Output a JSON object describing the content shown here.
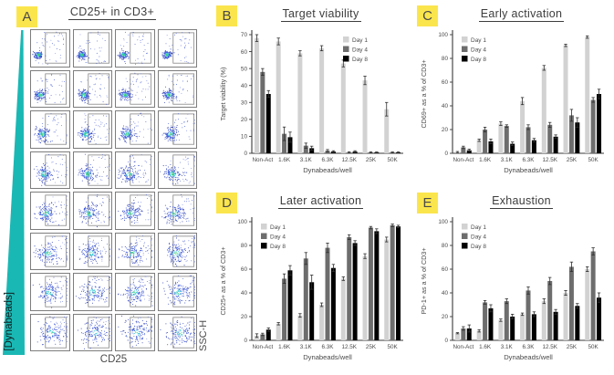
{
  "figure": {
    "panel_label_bg": "#fbe54d",
    "panel_label_color": "#4a4a4a",
    "title_color": "#3d3d3d",
    "axis_color": "#4a4a4a",
    "series_colors": [
      "#d2d2d2",
      "#6d6d6d",
      "#000000"
    ],
    "legend_labels": [
      "Day 1",
      "Day 4",
      "Day 8"
    ],
    "panel_a": {
      "label": "A",
      "title": "CD25+ in CD3+",
      "x_axis_label": "CD25",
      "y_axis_label": "SSC-H",
      "gradient_label": "[Dynabeads]",
      "gradient_color": "#1ab8b4",
      "plot_type": "flow-cytometry-pseudocolor-grid",
      "grid_rows": 8,
      "grid_cols": 4
    }
  },
  "chart_data": [
    {
      "panel": "B",
      "type": "bar",
      "title": "Target viability",
      "xlabel": "Dynabeads/well",
      "ylabel": "Target viability (%)",
      "ylim": [
        0,
        70
      ],
      "ytick_step": 10,
      "grid": false,
      "legend_position": "top-right",
      "categories": [
        "Non-Act",
        "1.6K",
        "3.1K",
        "6.3K",
        "12.5K",
        "25K",
        "50K"
      ],
      "series": [
        {
          "name": "Day 1",
          "values": [
            68,
            66,
            59,
            62,
            53,
            43,
            26
          ],
          "errors": [
            2,
            2,
            1.5,
            1.5,
            2,
            2.5,
            4
          ]
        },
        {
          "name": "Day 4",
          "values": [
            48,
            11.5,
            4.5,
            1.5,
            0.5,
            0.5,
            0.5
          ],
          "errors": [
            2,
            4,
            1.5,
            0.7,
            0.4,
            0.3,
            0.3
          ]
        },
        {
          "name": "Day 8",
          "values": [
            35,
            9.5,
            3,
            1,
            1,
            0.5,
            0.5
          ],
          "errors": [
            2,
            3,
            1.2,
            0.5,
            0.5,
            0.3,
            0.3
          ]
        }
      ]
    },
    {
      "panel": "C",
      "type": "bar",
      "title": "Early activation",
      "xlabel": "Dynabeads/well",
      "ylabel": "CD69+ as a % of CD3+",
      "ylim": [
        0,
        100
      ],
      "ytick_step": 20,
      "grid": false,
      "legend_position": "top-left",
      "categories": [
        "Non-Act",
        "1.6K",
        "3.1K",
        "6.3K",
        "12.5K",
        "25K",
        "50K"
      ],
      "series": [
        {
          "name": "Day 1",
          "values": [
            1,
            11,
            25,
            44,
            72,
            91,
            98
          ],
          "errors": [
            0.5,
            1,
            1.5,
            3,
            2,
            1,
            1
          ]
        },
        {
          "name": "Day 4",
          "values": [
            5,
            20,
            23,
            22,
            24,
            32,
            45
          ],
          "errors": [
            1,
            2,
            1,
            2,
            2,
            5,
            2
          ]
        },
        {
          "name": "Day 8",
          "values": [
            2.5,
            10,
            8,
            11,
            14,
            26,
            50
          ],
          "errors": [
            1,
            2,
            1.5,
            1.5,
            1.5,
            4,
            4
          ]
        }
      ]
    },
    {
      "panel": "D",
      "type": "bar",
      "title": "Later activation",
      "xlabel": "Dynabeads/well",
      "ylabel": "CD25+ as a % of CD3+",
      "ylim": [
        0,
        100
      ],
      "ytick_step": 20,
      "grid": false,
      "legend_position": "top-left",
      "categories": [
        "Non-Act",
        "1.6K",
        "3.1K",
        "6.3K",
        "12.5K",
        "25K",
        "50K"
      ],
      "series": [
        {
          "name": "Day 1",
          "values": [
            4,
            14,
            21,
            30,
            52,
            71,
            85
          ],
          "errors": [
            1.5,
            1,
            1.5,
            1.5,
            1.5,
            2,
            2
          ]
        },
        {
          "name": "Day 4",
          "values": [
            5,
            52,
            69,
            78,
            87,
            95,
            97
          ],
          "errors": [
            1,
            4,
            5,
            4,
            2,
            1,
            1
          ]
        },
        {
          "name": "Day 8",
          "values": [
            9,
            59,
            49,
            61,
            82,
            92,
            96
          ],
          "errors": [
            1.5,
            4,
            6,
            3,
            2,
            2,
            1
          ]
        }
      ]
    },
    {
      "panel": "E",
      "type": "bar",
      "title": "Exhaustion",
      "xlabel": "Dynabeads/well",
      "ylabel": "PD-1+ as a % of CD3+",
      "ylim": [
        0,
        100
      ],
      "ytick_step": 20,
      "grid": false,
      "legend_position": "top-left",
      "categories": [
        "Non-Act",
        "1.6K",
        "3.1K",
        "6.3K",
        "12.5K",
        "25K",
        "50K"
      ],
      "series": [
        {
          "name": "Day 1",
          "values": [
            6,
            8,
            17,
            22,
            33,
            40,
            60
          ],
          "errors": [
            0.5,
            1,
            1,
            1,
            2,
            2,
            2
          ]
        },
        {
          "name": "Day 4",
          "values": [
            10,
            32,
            33,
            42,
            50,
            62,
            75
          ],
          "errors": [
            1.5,
            1.5,
            2,
            3,
            3,
            4,
            3
          ]
        },
        {
          "name": "Day 8",
          "values": [
            10,
            27,
            20,
            22,
            24,
            29,
            36
          ],
          "errors": [
            3,
            3,
            2,
            2,
            2,
            2,
            4
          ]
        }
      ]
    }
  ]
}
